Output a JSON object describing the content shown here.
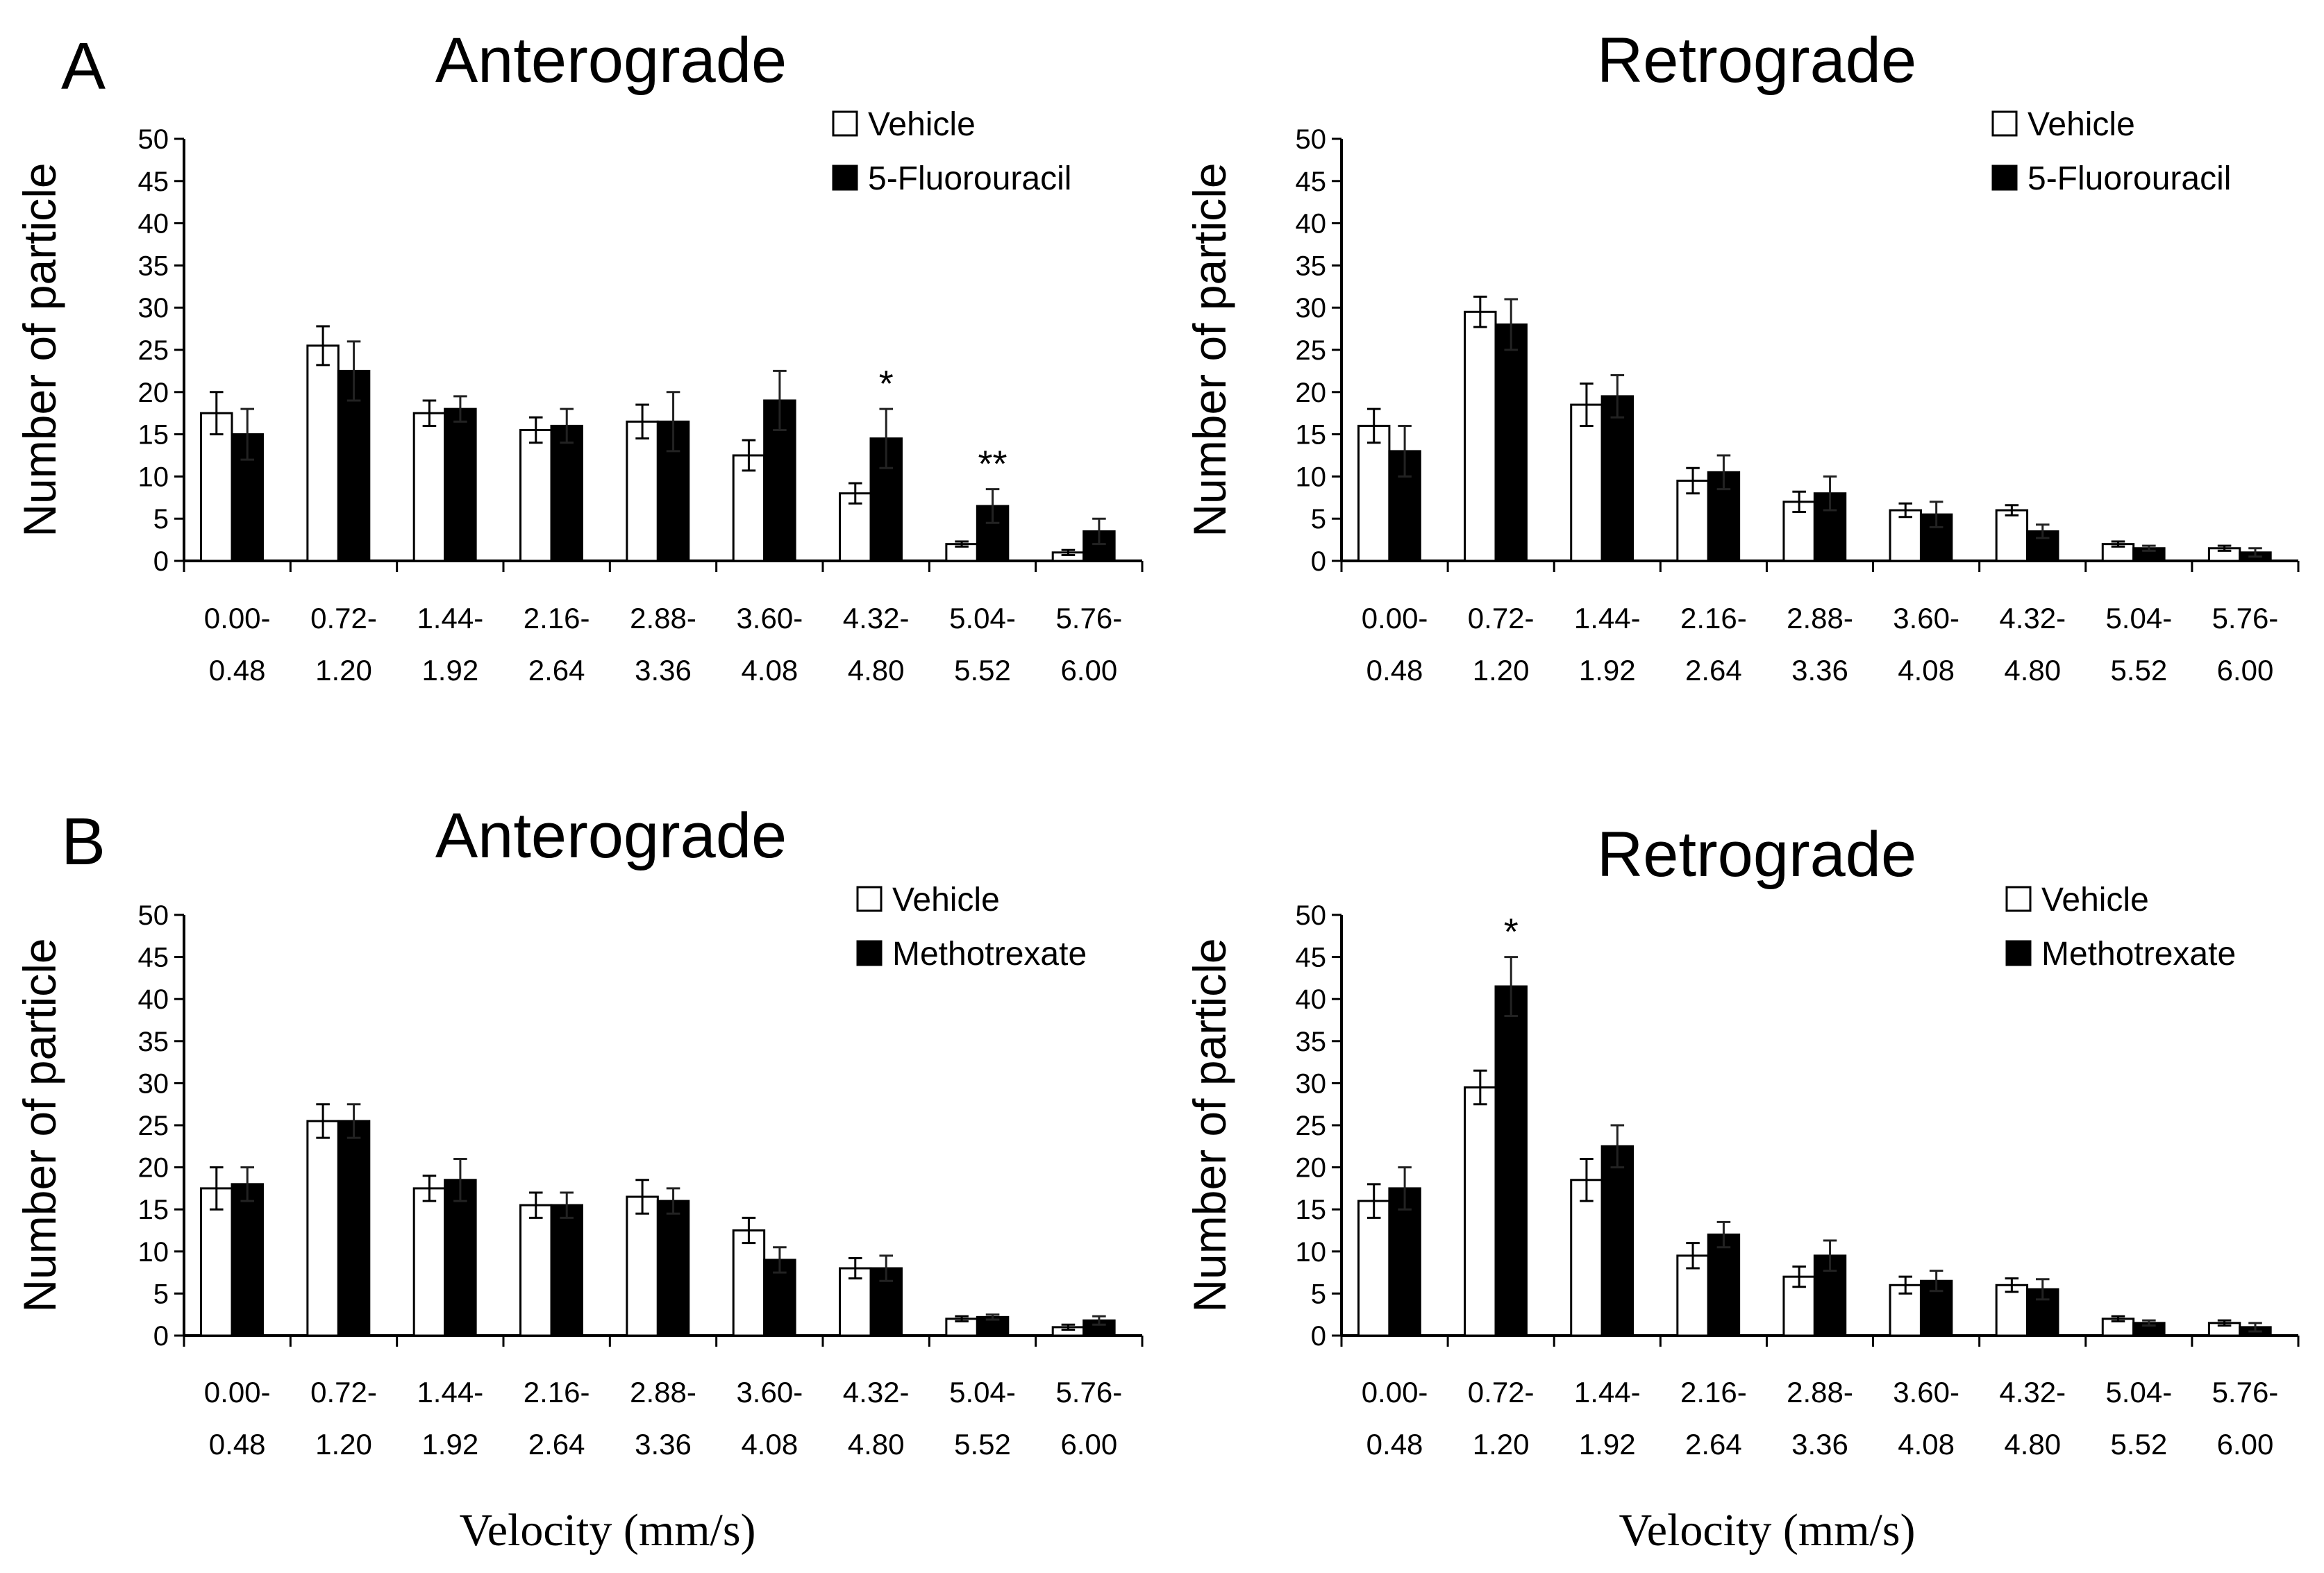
{
  "figure": {
    "xlabel": "Velocity (mm/s)",
    "panels": [
      {
        "letter": "A",
        "row": 0
      },
      {
        "letter": "B",
        "row": 1
      }
    ]
  },
  "colors": {
    "vehicle_fill": "#ffffff",
    "drug_fill": "#000000",
    "axis": "#000000"
  },
  "chart_data": [
    {
      "type": "bar",
      "panel": "A",
      "title": "Anterograde",
      "ylabel": "Number of particle",
      "xlabel": "",
      "ylim": [
        0,
        50
      ],
      "yticks": [
        "0",
        "5",
        "10",
        "15",
        "20",
        "25",
        "30",
        "35",
        "40",
        "45",
        "50"
      ],
      "categories": [
        [
          "0.00-",
          "0.48"
        ],
        [
          "0.72-",
          "1.20"
        ],
        [
          "1.44-",
          "1.92"
        ],
        [
          "2.16-",
          "2.64"
        ],
        [
          "2.88-",
          "3.36"
        ],
        [
          "3.60-",
          "4.08"
        ],
        [
          "4.32-",
          "4.80"
        ],
        [
          "5.04-",
          "5.52"
        ],
        [
          "5.76-",
          "6.00"
        ]
      ],
      "legend": [
        "Vehicle",
        "5-Fluorouracil"
      ],
      "series": [
        {
          "name": "Vehicle",
          "values": [
            17.5,
            25.5,
            17.5,
            15.5,
            16.5,
            12.5,
            8,
            2,
            1
          ],
          "errors": [
            2.5,
            2.3,
            1.5,
            1.5,
            2.0,
            1.8,
            1.2,
            0.3,
            0.3
          ]
        },
        {
          "name": "5-Fluorouracil",
          "values": [
            15,
            22.5,
            18,
            16,
            16.5,
            19,
            14.5,
            6.5,
            3.5
          ],
          "errors": [
            3.0,
            3.5,
            1.5,
            2.0,
            3.5,
            3.5,
            3.5,
            2.0,
            1.5
          ]
        }
      ],
      "significance": [
        {
          "category": 6,
          "label": "*"
        },
        {
          "category": 7,
          "label": "**"
        }
      ]
    },
    {
      "type": "bar",
      "panel": "A",
      "title": "Retrograde",
      "ylabel": "Number of particle",
      "xlabel": "",
      "ylim": [
        0,
        50
      ],
      "yticks": [
        "0",
        "5",
        "10",
        "15",
        "20",
        "25",
        "30",
        "35",
        "40",
        "45",
        "50"
      ],
      "categories": [
        [
          "0.00-",
          "0.48"
        ],
        [
          "0.72-",
          "1.20"
        ],
        [
          "1.44-",
          "1.92"
        ],
        [
          "2.16-",
          "2.64"
        ],
        [
          "2.88-",
          "3.36"
        ],
        [
          "3.60-",
          "4.08"
        ],
        [
          "4.32-",
          "4.80"
        ],
        [
          "5.04-",
          "5.52"
        ],
        [
          "5.76-",
          "6.00"
        ]
      ],
      "legend": [
        "Vehicle",
        "5-Fluorouracil"
      ],
      "series": [
        {
          "name": "Vehicle",
          "values": [
            16,
            29.5,
            18.5,
            9.5,
            7,
            6,
            6,
            2,
            1.5
          ],
          "errors": [
            2.0,
            1.8,
            2.5,
            1.5,
            1.2,
            0.8,
            0.6,
            0.3,
            0.3
          ]
        },
        {
          "name": "5-Fluorouracil",
          "values": [
            13,
            28,
            19.5,
            10.5,
            8,
            5.5,
            3.5,
            1.5,
            1
          ],
          "errors": [
            3.0,
            3.0,
            2.5,
            2.0,
            2.0,
            1.5,
            0.8,
            0.3,
            0.5
          ]
        }
      ],
      "significance": []
    },
    {
      "type": "bar",
      "panel": "B",
      "title": "Anterograde",
      "ylabel": "Number of particle",
      "xlabel": "Velocity (mm/s)",
      "ylim": [
        0,
        50
      ],
      "yticks": [
        "0",
        "5",
        "10",
        "15",
        "20",
        "25",
        "30",
        "35",
        "40",
        "45",
        "50"
      ],
      "categories": [
        [
          "0.00-",
          "0.48"
        ],
        [
          "0.72-",
          "1.20"
        ],
        [
          "1.44-",
          "1.92"
        ],
        [
          "2.16-",
          "2.64"
        ],
        [
          "2.88-",
          "3.36"
        ],
        [
          "3.60-",
          "4.08"
        ],
        [
          "4.32-",
          "4.80"
        ],
        [
          "5.04-",
          "5.52"
        ],
        [
          "5.76-",
          "6.00"
        ]
      ],
      "legend": [
        "Vehicle",
        "Methotrexate"
      ],
      "series": [
        {
          "name": "Vehicle",
          "values": [
            17.5,
            25.5,
            17.5,
            15.5,
            16.5,
            12.5,
            8,
            2,
            1
          ],
          "errors": [
            2.5,
            2.0,
            1.5,
            1.5,
            2.0,
            1.5,
            1.2,
            0.3,
            0.3
          ]
        },
        {
          "name": "Methotrexate",
          "values": [
            18,
            25.5,
            18.5,
            15.5,
            16,
            9,
            8,
            2.2,
            1.8
          ],
          "errors": [
            2.0,
            2.0,
            2.5,
            1.5,
            1.5,
            1.5,
            1.5,
            0.3,
            0.5
          ]
        }
      ],
      "significance": []
    },
    {
      "type": "bar",
      "panel": "B",
      "title": "Retrograde",
      "ylabel": "Number of particle",
      "xlabel": "Velocity (mm/s)",
      "ylim": [
        0,
        50
      ],
      "yticks": [
        "0",
        "5",
        "10",
        "15",
        "20",
        "25",
        "30",
        "35",
        "40",
        "45",
        "50"
      ],
      "categories": [
        [
          "0.00-",
          "0.48"
        ],
        [
          "0.72-",
          "1.20"
        ],
        [
          "1.44-",
          "1.92"
        ],
        [
          "2.16-",
          "2.64"
        ],
        [
          "2.88-",
          "3.36"
        ],
        [
          "3.60-",
          "4.08"
        ],
        [
          "4.32-",
          "4.80"
        ],
        [
          "5.04-",
          "5.52"
        ],
        [
          "5.76-",
          "6.00"
        ]
      ],
      "legend": [
        "Vehicle",
        "Methotrexate"
      ],
      "series": [
        {
          "name": "Vehicle",
          "values": [
            16,
            29.5,
            18.5,
            9.5,
            7,
            6,
            6,
            2,
            1.5
          ],
          "errors": [
            2.0,
            2.0,
            2.5,
            1.5,
            1.2,
            1.0,
            0.8,
            0.3,
            0.3
          ]
        },
        {
          "name": "Methotrexate",
          "values": [
            17.5,
            41.5,
            22.5,
            12,
            9.5,
            6.5,
            5.5,
            1.5,
            1
          ],
          "errors": [
            2.5,
            3.5,
            2.5,
            1.5,
            1.8,
            1.2,
            1.2,
            0.3,
            0.5
          ]
        }
      ],
      "significance": [
        {
          "category": 1,
          "label": "*"
        }
      ]
    }
  ]
}
